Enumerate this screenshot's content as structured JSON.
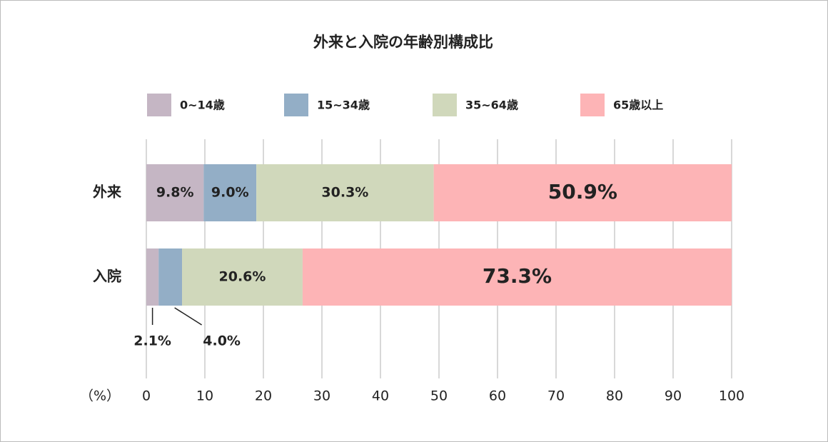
{
  "chart_data": {
    "type": "stacked-barh",
    "title": "外来と入院の年齢別構成比",
    "categories": [
      "外来",
      "入院"
    ],
    "series": [
      {
        "name": "0~14歳",
        "color": "#c5b6c4",
        "values": [
          9.8,
          2.1
        ],
        "value_labels": [
          "9.8%",
          "2.1%"
        ]
      },
      {
        "name": "15~34歳",
        "color": "#93aec6",
        "values": [
          9.0,
          4.0
        ],
        "value_labels": [
          "9.0%",
          "4.0%"
        ]
      },
      {
        "name": "35~64歳",
        "color": "#d0d8bb",
        "values": [
          30.3,
          20.6
        ],
        "value_labels": [
          "30.3%",
          "20.6%"
        ]
      },
      {
        "name": "65歳以上",
        "color": "#fdb4b6",
        "values": [
          50.9,
          73.3
        ],
        "value_labels": [
          "50.9%",
          "73.3%"
        ]
      }
    ],
    "xlim": [
      0,
      100
    ],
    "xticks": [
      0,
      10,
      20,
      30,
      40,
      50,
      60,
      70,
      80,
      90,
      100
    ],
    "xlabel": "（%）",
    "grid": true
  }
}
